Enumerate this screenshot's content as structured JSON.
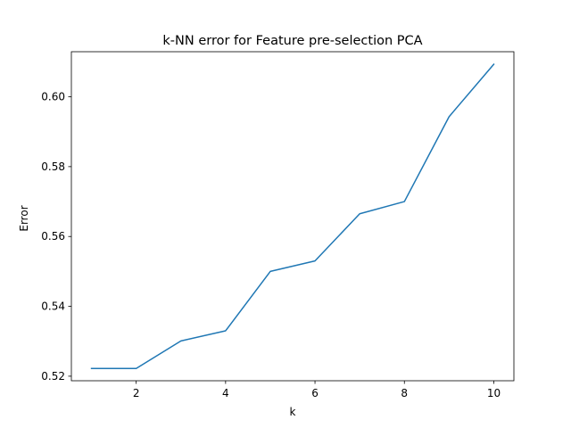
{
  "chart_data": {
    "type": "line",
    "title": "k-NN error for Feature pre-selection PCA",
    "xlabel": "k",
    "ylabel": "Error",
    "xlim": [
      0.55,
      10.45
    ],
    "ylim": [
      0.5187,
      0.6129
    ],
    "xticks": [
      2,
      4,
      6,
      8,
      10
    ],
    "yticks": [
      0.52,
      0.54,
      0.56,
      0.58,
      0.6
    ],
    "xtick_labels": [
      "2",
      "4",
      "6",
      "8",
      "10"
    ],
    "ytick_labels": [
      "0.52",
      "0.54",
      "0.56",
      "0.58",
      "0.60"
    ],
    "grid": false,
    "series": [
      {
        "color": "#1f77b4",
        "x": [
          1,
          2,
          3,
          4,
          5,
          6,
          7,
          8,
          9,
          10
        ],
        "y": [
          0.5222,
          0.5222,
          0.5301,
          0.533,
          0.55,
          0.553,
          0.5665,
          0.57,
          0.5943,
          0.6093
        ]
      }
    ]
  }
}
